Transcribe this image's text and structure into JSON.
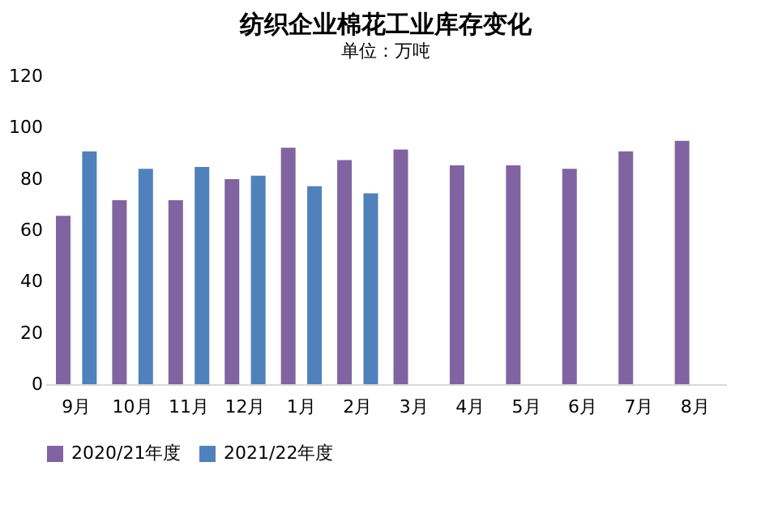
{
  "chart_data": {
    "type": "bar",
    "title": "纺织企业棉花工业库存变化",
    "ylabel": "单位：万吨",
    "categories": [
      "9月",
      "10月",
      "11月",
      "12月",
      "1月",
      "2月",
      "3月",
      "4月",
      "5月",
      "6月",
      "7月",
      "8月"
    ],
    "series": [
      {
        "name": "2020/21年度",
        "color": "#8064a2",
        "values": [
          65.6,
          71.7,
          71.7,
          79.9,
          92.1,
          87.3,
          91.4,
          85.3,
          85.3,
          83.9,
          90.7,
          94.8
        ]
      },
      {
        "name": "2021/22年度",
        "color": "#4f81bd",
        "values": [
          90.7,
          83.9,
          84.6,
          81.2,
          77.1,
          74.4,
          null,
          null,
          null,
          null,
          null,
          null
        ]
      }
    ],
    "ylim": [
      0,
      120
    ],
    "yticks": [
      0,
      20,
      40,
      60,
      80,
      100,
      120
    ],
    "grid": false,
    "legend": "bottom"
  }
}
